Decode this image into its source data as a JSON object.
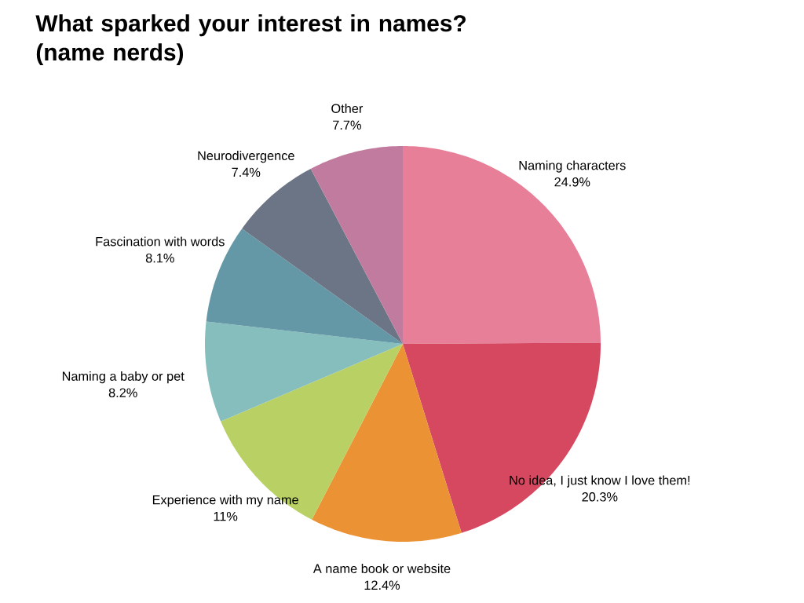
{
  "chart_data": {
    "type": "pie",
    "title": "What sparked your interest in names? (name nerds)",
    "categories": [
      "Naming characters",
      "No idea, I just know I love them!",
      "A name book or website",
      "Experience with my name",
      "Naming a baby or pet",
      "Fascination with words",
      "Neurodivergence",
      "Other"
    ],
    "values": [
      24.9,
      20.3,
      12.4,
      11,
      8.2,
      8.1,
      7.4,
      7.7
    ],
    "value_labels": [
      "24.9%",
      "20.3%",
      "12.4%",
      "11%",
      "8.2%",
      "8.1%",
      "7.4%",
      "7.7%"
    ],
    "colors": [
      "#e87f98",
      "#d64760",
      "#eb9234",
      "#b9d164",
      "#85bebd",
      "#6498a6",
      "#6c7585",
      "#c07b9e"
    ]
  }
}
